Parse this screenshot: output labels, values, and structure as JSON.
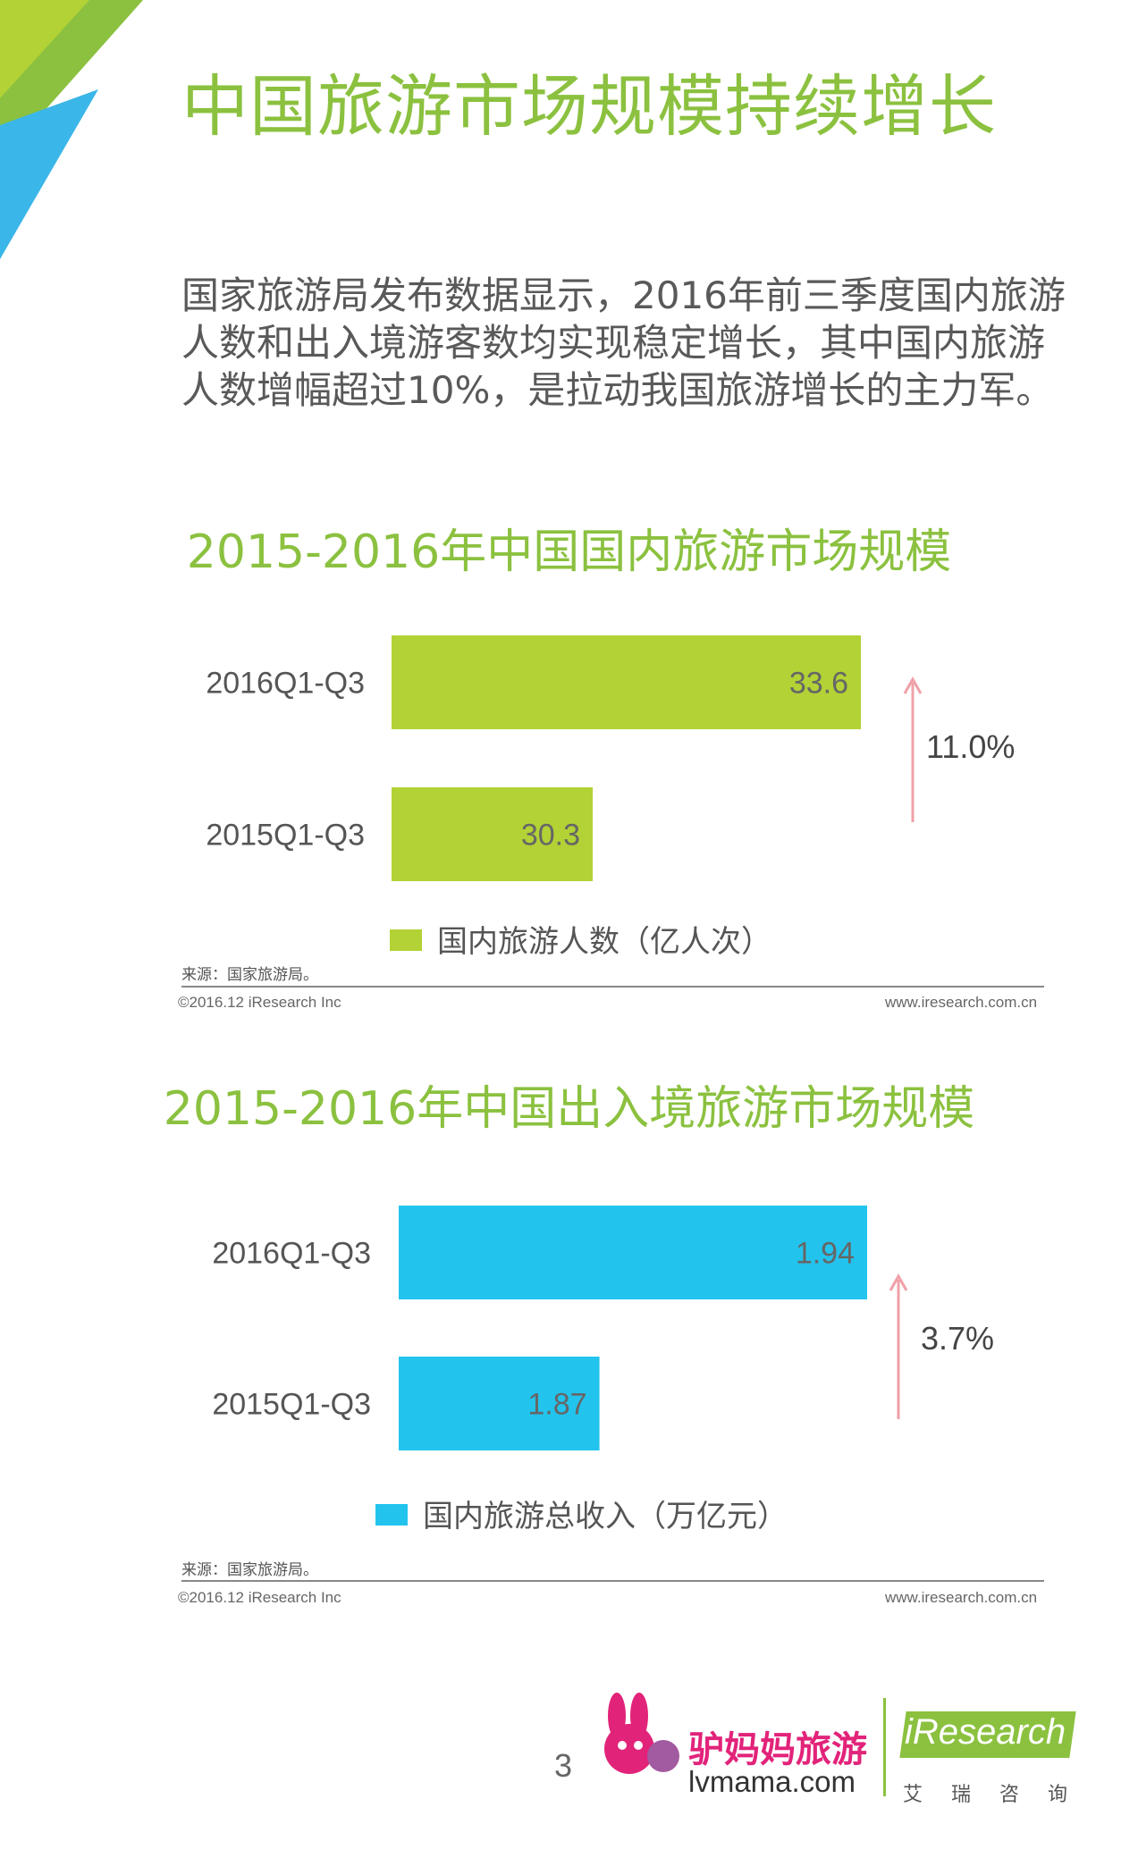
{
  "page": {
    "title": "中国旅游市场规模持续增长",
    "intro": "国家旅游局发布数据显示，2016年前三季度国内旅游人数和出入境游客数均实现稳定增长，其中国内旅游人数增幅超过10%，是拉动我国旅游增长的主力军。",
    "page_number": "3"
  },
  "colors": {
    "title_green": "#8bc13f",
    "bar_green": "#b2d235",
    "bar_blue": "#22c4ee",
    "growth_arrow": "#f0a0a8",
    "corner_green": "#8bc13f",
    "corner_blue": "#3bb6e8"
  },
  "chart_data": [
    {
      "type": "bar",
      "orientation": "horizontal",
      "title": "2015-2016年中国国内旅游市场规模",
      "categories": [
        "2016Q1-Q3",
        "2015Q1-Q3"
      ],
      "series": [
        {
          "name": "国内旅游人数（亿人次）",
          "values": [
            33.6,
            30.3
          ]
        }
      ],
      "value_labels": [
        "33.6",
        "30.3"
      ],
      "growth_label": "11.0%",
      "legend_position": "bottom",
      "source": "来源：国家旅游局。",
      "footer_left": "©2016.12 iResearch Inc",
      "footer_right": "www.iresearch.com.cn"
    },
    {
      "type": "bar",
      "orientation": "horizontal",
      "title": "2015-2016年中国出入境旅游市场规模",
      "categories": [
        "2016Q1-Q3",
        "2015Q1-Q3"
      ],
      "series": [
        {
          "name": "国内旅游总收入（万亿元）",
          "values": [
            1.94,
            1.87
          ]
        }
      ],
      "value_labels": [
        "1.94",
        "1.87"
      ],
      "growth_label": "3.7%",
      "legend_position": "bottom",
      "source": "来源：国家旅游局。",
      "footer_left": "©2016.12 iResearch Inc",
      "footer_right": "www.iresearch.com.cn"
    }
  ],
  "logos": {
    "lvmama_cn": "驴妈妈旅游",
    "lvmama_url": "lvmama.com",
    "iresearch_en": "iResearch",
    "iresearch_cn": "艾瑞咨询"
  }
}
